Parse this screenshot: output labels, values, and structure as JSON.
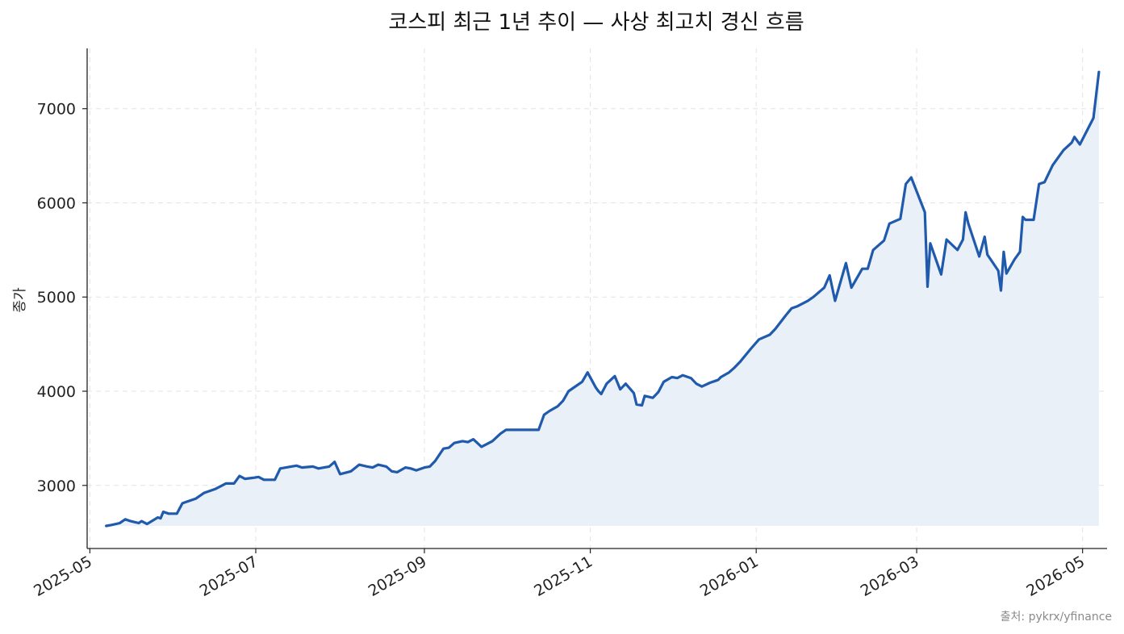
{
  "chart_data": {
    "type": "area",
    "title": "코스피 최근 1년 추이 — 사상 최고치 경신 흐름",
    "xlabel": "",
    "ylabel": "종가",
    "source": "출처: pykrx/yfinance",
    "xlim": [
      "2025-04-30",
      "2026-05-10"
    ],
    "ylim": [
      2330,
      7640
    ],
    "x_ticks": [
      "2025-05",
      "2025-07",
      "2025-09",
      "2025-11",
      "2026-01",
      "2026-03",
      "2026-05"
    ],
    "y_ticks": [
      3000,
      4000,
      5000,
      6000,
      7000
    ],
    "grid": true,
    "line_color": "#1f5aad",
    "fill_color": "#eaf0f8",
    "series": [
      {
        "x": [
          "2025-05-07",
          "2025-05-09",
          "2025-05-12",
          "2025-05-14",
          "2025-05-16",
          "2025-05-19",
          "2025-05-20",
          "2025-05-22",
          "2025-05-26",
          "2025-05-27",
          "2025-05-28",
          "2025-05-30",
          "2025-06-02",
          "2025-06-04",
          "2025-06-05",
          "2025-06-09",
          "2025-06-12",
          "2025-06-16",
          "2025-06-18",
          "2025-06-20",
          "2025-06-23",
          "2025-06-25",
          "2025-06-27",
          "2025-06-30",
          "2025-07-02",
          "2025-07-04",
          "2025-07-08",
          "2025-07-10",
          "2025-07-14",
          "2025-07-16",
          "2025-07-18",
          "2025-07-22",
          "2025-07-24",
          "2025-07-28",
          "2025-07-30",
          "2025-08-01",
          "2025-08-05",
          "2025-08-08",
          "2025-08-11",
          "2025-08-13",
          "2025-08-15",
          "2025-08-18",
          "2025-08-20",
          "2025-08-22",
          "2025-08-25",
          "2025-08-27",
          "2025-08-29",
          "2025-09-01",
          "2025-09-03",
          "2025-09-05",
          "2025-09-08",
          "2025-09-10",
          "2025-09-12",
          "2025-09-15",
          "2025-09-17",
          "2025-09-19",
          "2025-09-22",
          "2025-09-24",
          "2025-09-26",
          "2025-09-29",
          "2025-10-01",
          "2025-10-13",
          "2025-10-15",
          "2025-10-17",
          "2025-10-20",
          "2025-10-22",
          "2025-10-24",
          "2025-10-27",
          "2025-10-29",
          "2025-10-31",
          "2025-11-03",
          "2025-11-04",
          "2025-11-05",
          "2025-11-07",
          "2025-11-10",
          "2025-11-12",
          "2025-11-14",
          "2025-11-17",
          "2025-11-18",
          "2025-11-20",
          "2025-11-21",
          "2025-11-24",
          "2025-11-26",
          "2025-11-28",
          "2025-12-01",
          "2025-12-03",
          "2025-12-05",
          "2025-12-08",
          "2025-12-10",
          "2025-12-12",
          "2025-12-15",
          "2025-12-17",
          "2025-12-18",
          "2025-12-19",
          "2025-12-22",
          "2025-12-24",
          "2025-12-26",
          "2025-12-30",
          "2026-01-02",
          "2026-01-06",
          "2026-01-08",
          "2026-01-12",
          "2026-01-14",
          "2026-01-16",
          "2026-01-20",
          "2026-01-22",
          "2026-01-26",
          "2026-01-28",
          "2026-01-30",
          "2026-02-03",
          "2026-02-05",
          "2026-02-09",
          "2026-02-11",
          "2026-02-13",
          "2026-02-17",
          "2026-02-19",
          "2026-02-23",
          "2026-02-25",
          "2026-02-27",
          "2026-03-04",
          "2026-03-05",
          "2026-03-06",
          "2026-03-10",
          "2026-03-12",
          "2026-03-16",
          "2026-03-18",
          "2026-03-19",
          "2026-03-20",
          "2026-03-24",
          "2026-03-26",
          "2026-03-27",
          "2026-03-31",
          "2026-04-01",
          "2026-04-02",
          "2026-04-03",
          "2026-04-06",
          "2026-04-08",
          "2026-04-09",
          "2026-04-10",
          "2026-04-13",
          "2026-04-15",
          "2026-04-17",
          "2026-04-20",
          "2026-04-22",
          "2026-04-24",
          "2026-04-27",
          "2026-04-28",
          "2026-04-30",
          "2026-05-05",
          "2026-05-07"
        ],
        "y": [
          2570,
          2580,
          2600,
          2640,
          2620,
          2600,
          2620,
          2590,
          2660,
          2650,
          2720,
          2700,
          2700,
          2810,
          2820,
          2860,
          2920,
          2960,
          2990,
          3020,
          3020,
          3100,
          3070,
          3080,
          3090,
          3060,
          3060,
          3180,
          3200,
          3210,
          3190,
          3200,
          3180,
          3200,
          3250,
          3120,
          3150,
          3220,
          3200,
          3190,
          3220,
          3200,
          3150,
          3140,
          3190,
          3180,
          3160,
          3190,
          3200,
          3260,
          3390,
          3400,
          3450,
          3470,
          3460,
          3490,
          3410,
          3440,
          3470,
          3550,
          3590,
          3590,
          3750,
          3790,
          3840,
          3900,
          4000,
          4060,
          4100,
          4200,
          4040,
          4000,
          3970,
          4080,
          4160,
          4020,
          4080,
          3980,
          3860,
          3850,
          3950,
          3930,
          3990,
          4100,
          4150,
          4140,
          4170,
          4140,
          4080,
          4050,
          4090,
          4110,
          4120,
          4150,
          4200,
          4250,
          4310,
          4450,
          4550,
          4600,
          4660,
          4810,
          4880,
          4900,
          4960,
          5000,
          5100,
          5230,
          4960,
          5360,
          5100,
          5300,
          5300,
          5500,
          5600,
          5780,
          5830,
          6200,
          6270,
          5900,
          5110,
          5570,
          5240,
          5610,
          5500,
          5610,
          5900,
          5780,
          5430,
          5640,
          5450,
          5280,
          5070,
          5480,
          5250,
          5400,
          5480,
          5850,
          5820,
          5820,
          6200,
          6220,
          6400,
          6480,
          6560,
          6640,
          6700,
          6620,
          6900,
          7390
        ]
      }
    ]
  }
}
